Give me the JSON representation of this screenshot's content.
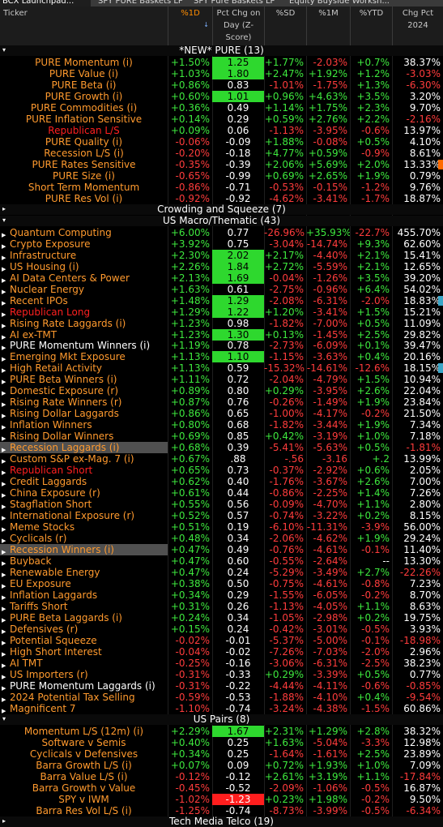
{
  "tabs": [
    "BCX Launchpad...",
    "SPY PURE Baskets LP",
    "SPY Pure Baskets LP",
    "Equity Buyside Worksh..."
  ],
  "columns": [
    {
      "label": "Ticker"
    },
    {
      "label": "%1D",
      "sort_icon": "↓"
    },
    {
      "label": "Pct Chg on Day (Z-Score)"
    },
    {
      "label": "%SD"
    },
    {
      "label": "%1M"
    },
    {
      "label": "%YTD"
    },
    {
      "label": "Chg Pct 2024"
    }
  ],
  "colors": {
    "positive": "#3ee83e",
    "negative": "#ff3c3c",
    "zscore_bar": "#2ed82e",
    "zscore_neg_bar": "#ff1e1e",
    "orange_text": "#ff9a2e",
    "red_text": "#ff2020",
    "edge_orange": "#ff6a00",
    "edge_teal": "#3aa6c8"
  },
  "groups": [
    {
      "title": "*NEW* PURE (13)",
      "align": "c",
      "rows": [
        {
          "name": "PURE Momentum (i)",
          "color": "orange",
          "d1": "+1.50%",
          "z": "1.25",
          "zbar": "green",
          "sd": "+1.77%",
          "m1": "-2.03%",
          "ytd": "+0.7%",
          "y24": "38.37%"
        },
        {
          "name": "PURE Value (i)",
          "color": "orange",
          "d1": "+1.03%",
          "z": "1.80",
          "zbar": "green",
          "sd": "+2.47%",
          "m1": "+1.92%",
          "ytd": "+1.2%",
          "y24": "-3.03%"
        },
        {
          "name": "PURE Beta (i)",
          "color": "orange",
          "d1": "+0.86%",
          "z": "0.83",
          "sd": "-1.01%",
          "m1": "-1.75%",
          "ytd": "+1.3%",
          "y24": "-6.30%"
        },
        {
          "name": "PURE Growth (i)",
          "color": "orange",
          "d1": "+0.60%",
          "z": "1.01",
          "zbar": "green",
          "sd": "+0.96%",
          "m1": "+4.63%",
          "ytd": "+3.5%",
          "y24": "3.20%"
        },
        {
          "name": "PURE Commodities (i)",
          "color": "orange",
          "d1": "+0.36%",
          "z": "0.49",
          "sd": "+1.14%",
          "m1": "+1.75%",
          "ytd": "+2.3%",
          "y24": "9.70%"
        },
        {
          "name": "PURE Inflation Sensitive",
          "color": "orange",
          "d1": "+0.14%",
          "z": "0.29",
          "sd": "+0.59%",
          "m1": "+2.76%",
          "ytd": "+2.2%",
          "y24": "-2.16%"
        },
        {
          "name": "Republican L/S",
          "color": "red",
          "d1": "+0.09%",
          "z": "0.06",
          "sd": "-1.13%",
          "m1": "-3.95%",
          "ytd": "-0.6%",
          "y24": "13.97%"
        },
        {
          "name": "PURE Quality (i)",
          "color": "orange",
          "d1": "-0.06%",
          "z": "-0.09",
          "sd": "+1.88%",
          "m1": "-0.08%",
          "ytd": "+0.5%",
          "y24": "4.10%"
        },
        {
          "name": "Recession L/S (i)",
          "color": "orange",
          "d1": "-0.20%",
          "z": "-0.18",
          "sd": "+4.77%",
          "m1": "+0.59%",
          "ytd": "-0.9%",
          "y24": "8.61%"
        },
        {
          "name": "PURE Rates Sensitive",
          "color": "orange",
          "d1": "-0.35%",
          "z": "-0.39",
          "sd": "+2.06%",
          "m1": "+5.69%",
          "ytd": "+2.0%",
          "y24": "13.33%",
          "edge": "orange"
        },
        {
          "name": "PURE Size (i)",
          "color": "orange",
          "d1": "-0.65%",
          "z": "-0.99",
          "sd": "+0.69%",
          "m1": "+2.65%",
          "ytd": "+1.9%",
          "y24": "0.79%"
        },
        {
          "name": "Short Term Momentum",
          "color": "orange",
          "d1": "-0.86%",
          "z": "-0.71",
          "sd": "-0.53%",
          "m1": "-0.15%",
          "ytd": "-1.2%",
          "y24": "9.76%"
        },
        {
          "name": "PURE Res Vol (i)",
          "color": "orange",
          "d1": "-0.92%",
          "z": "-0.92",
          "sd": "-4.62%",
          "m1": "-3.41%",
          "ytd": "-1.7%",
          "y24": "18.87%"
        }
      ]
    },
    {
      "title": "Crowding and Squeeze (7)",
      "collapsed": true,
      "rows": []
    },
    {
      "title": "US Macro/Thematic (43)",
      "align": "l",
      "rows": [
        {
          "name": "Quantum Computing",
          "color": "orange",
          "d1": "+6.00%",
          "z": "0.77",
          "sd": "-26.96%",
          "m1": "+35.93%",
          "ytd": "-22.7%",
          "y24": "455.70%"
        },
        {
          "name": "Crypto Exposure",
          "color": "orange",
          "d1": "+3.92%",
          "z": "0.75",
          "sd": "-3.04%",
          "m1": "-14.74%",
          "ytd": "+9.3%",
          "y24": "62.60%"
        },
        {
          "name": "Infrastructure",
          "color": "orange",
          "d1": "+2.30%",
          "z": "2.02",
          "zbar": "green",
          "sd": "+2.17%",
          "m1": "-4.40%",
          "ytd": "+2.1%",
          "y24": "15.41%"
        },
        {
          "name": "US Housing (i)",
          "color": "orange",
          "d1": "+2.26%",
          "z": "1.84",
          "zbar": "green",
          "sd": "+2.72%",
          "m1": "-5.59%",
          "ytd": "+2.1%",
          "y24": "12.65%"
        },
        {
          "name": "AI Data Centers & Power",
          "color": "orange",
          "d1": "+2.13%",
          "z": "1.69",
          "zbar": "green",
          "sd": "-0.04%",
          "m1": "-1.26%",
          "ytd": "+3.5%",
          "y24": "39.20%"
        },
        {
          "name": "Nuclear Energy",
          "color": "orange",
          "d1": "+1.63%",
          "z": "0.61",
          "sd": "-2.75%",
          "m1": "-0.96%",
          "ytd": "+6.4%",
          "y24": "54.02%"
        },
        {
          "name": "Recent IPOs",
          "color": "orange",
          "d1": "+1.48%",
          "z": "1.29",
          "zbar": "green",
          "sd": "-2.08%",
          "m1": "-6.31%",
          "ytd": "-2.0%",
          "y24": "18.83%",
          "edge": "teal"
        },
        {
          "name": "Republican Long",
          "color": "red",
          "d1": "+1.29%",
          "z": "1.22",
          "zbar": "green",
          "sd": "+1.20%",
          "m1": "-3.41%",
          "ytd": "+1.5%",
          "y24": "15.21%"
        },
        {
          "name": "Rising Rate Laggards (i)",
          "color": "orange",
          "d1": "+1.23%",
          "z": "0.98",
          "sd": "-1.82%",
          "m1": "-7.00%",
          "ytd": "+0.5%",
          "y24": "11.09%"
        },
        {
          "name": "AI ex-TMT",
          "color": "orange",
          "d1": "+1.23%",
          "z": "1.30",
          "zbar": "green",
          "sd": "+0.13%",
          "m1": "-1.45%",
          "ytd": "+2.5%",
          "y24": "29.82%"
        },
        {
          "name": "PURE Momentum Winners (i)",
          "color": "white",
          "d1": "+1.19%",
          "z": "0.78",
          "sd": "-2.73%",
          "m1": "-6.09%",
          "ytd": "+0.1%",
          "y24": "39.47%"
        },
        {
          "name": "Emerging Mkt Exposure",
          "color": "orange",
          "d1": "+1.13%",
          "z": "1.10",
          "zbar": "green",
          "sd": "-1.15%",
          "m1": "-3.63%",
          "ytd": "+0.4%",
          "y24": "20.16%"
        },
        {
          "name": "High Retail Activity",
          "color": "orange",
          "d1": "+1.13%",
          "z": "0.59",
          "sd": "-15.32%",
          "m1": "-14.61%",
          "ytd": "-12.6%",
          "y24": "18.15%",
          "edge": "teal"
        },
        {
          "name": "PURE Beta Winners (i)",
          "color": "orange",
          "d1": "+1.11%",
          "z": "0.72",
          "sd": "-2.04%",
          "m1": "-4.79%",
          "ytd": "+1.5%",
          "y24": "10.94%"
        },
        {
          "name": "Domestic Exposure (r)",
          "color": "orange",
          "d1": "+0.89%",
          "z": "0.80",
          "sd": "+0.29%",
          "m1": "-3.95%",
          "ytd": "+2.6%",
          "y24": "22.04%"
        },
        {
          "name": "Rising Rate Winners (r)",
          "color": "orange",
          "d1": "+0.87%",
          "z": "0.76",
          "sd": "-0.26%",
          "m1": "-1.49%",
          "ytd": "+1.9%",
          "y24": "23.84%"
        },
        {
          "name": "Rising Dollar Laggards",
          "color": "orange",
          "d1": "+0.86%",
          "z": "0.65",
          "sd": "-1.00%",
          "m1": "-4.17%",
          "ytd": "-0.2%",
          "y24": "21.50%"
        },
        {
          "name": "Inflation Winners",
          "color": "orange",
          "d1": "+0.80%",
          "z": "0.68",
          "sd": "-1.82%",
          "m1": "-3.44%",
          "ytd": "+1.9%",
          "y24": "7.34%"
        },
        {
          "name": "Rising Dollar Winners",
          "color": "orange",
          "d1": "+0.69%",
          "z": "0.85",
          "sd": "+0.42%",
          "m1": "-3.19%",
          "ytd": "+1.0%",
          "y24": "7.18%"
        },
        {
          "name": "Recession Laggards (i)",
          "color": "orange",
          "d1": "+0.68%",
          "z": "0.39",
          "sd": "-5.41%",
          "m1": "-5.63%",
          "ytd": "+0.5%",
          "y24": "-1.81%",
          "selected": true
        },
        {
          "name": "Custom S&P ex-Mag. 7 (i)",
          "color": "orange",
          "d1": "+0.67%",
          "z": ".88",
          "sd": "-.56",
          "m1": "-3.16",
          "ytd": "+.2",
          "y24": "13.99%"
        },
        {
          "name": "Republican Short",
          "color": "red",
          "d1": "+0.65%",
          "z": "0.73",
          "sd": "-0.37%",
          "m1": "-2.92%",
          "ytd": "+0.6%",
          "y24": "2.05%"
        },
        {
          "name": "Credit Laggards",
          "color": "orange",
          "d1": "+0.62%",
          "z": "0.40",
          "sd": "-1.76%",
          "m1": "-3.67%",
          "ytd": "+2.6%",
          "y24": "7.00%"
        },
        {
          "name": "China Exposure (r)",
          "color": "orange",
          "d1": "+0.61%",
          "z": "0.44",
          "sd": "-0.86%",
          "m1": "-2.25%",
          "ytd": "+1.4%",
          "y24": "7.26%"
        },
        {
          "name": "Stagflation Short",
          "color": "orange",
          "d1": "+0.55%",
          "z": "0.56",
          "sd": "-0.09%",
          "m1": "-4.70%",
          "ytd": "+1.1%",
          "y24": "2.80%"
        },
        {
          "name": "International Exposure (r)",
          "color": "orange",
          "d1": "+0.52%",
          "z": "0.57",
          "sd": "-0.74%",
          "m1": "-3.22%",
          "ytd": "+0.2%",
          "y24": "8.15%"
        },
        {
          "name": "Meme Stocks",
          "color": "orange",
          "d1": "+0.51%",
          "z": "0.19",
          "sd": "-6.10%",
          "m1": "-11.31%",
          "ytd": "-3.9%",
          "y24": "56.00%"
        },
        {
          "name": "Cyclicals (r)",
          "color": "orange",
          "d1": "+0.48%",
          "z": "0.34",
          "sd": "-2.06%",
          "m1": "-4.62%",
          "ytd": "+1.9%",
          "y24": "29.24%"
        },
        {
          "name": "Recession Winners (i)",
          "color": "orange",
          "d1": "+0.47%",
          "z": "0.49",
          "sd": "-0.76%",
          "m1": "-4.61%",
          "ytd": "-0.1%",
          "y24": "11.40%",
          "selected": true
        },
        {
          "name": "Buyback",
          "color": "orange",
          "d1": "+0.47%",
          "z": "0.60",
          "sd": "-0.55%",
          "m1": "-2.64%",
          "ytd": "--",
          "y24": "13.30%"
        },
        {
          "name": "Renewable Energy",
          "color": "orange",
          "d1": "+0.47%",
          "z": "0.24",
          "sd": "-5.29%",
          "m1": "-3.49%",
          "ytd": "+2.7%",
          "y24": "-22.26%"
        },
        {
          "name": "EU Exposure",
          "color": "orange",
          "d1": "+0.38%",
          "z": "0.50",
          "sd": "-0.75%",
          "m1": "-4.61%",
          "ytd": "-0.8%",
          "y24": "7.23%"
        },
        {
          "name": "Inflation Laggards",
          "color": "orange",
          "d1": "+0.34%",
          "z": "0.29",
          "sd": "-1.55%",
          "m1": "-6.05%",
          "ytd": "-0.2%",
          "y24": "8.70%"
        },
        {
          "name": "Tariffs Short",
          "color": "orange",
          "d1": "+0.31%",
          "z": "0.26",
          "sd": "-1.13%",
          "m1": "-4.05%",
          "ytd": "+1.1%",
          "y24": "8.63%"
        },
        {
          "name": "PURE Beta Laggards (i)",
          "color": "orange",
          "d1": "+0.24%",
          "z": "0.34",
          "sd": "-1.05%",
          "m1": "-2.98%",
          "ytd": "+0.2%",
          "y24": "19.75%"
        },
        {
          "name": "Defensives (r)",
          "color": "orange",
          "d1": "+0.15%",
          "z": "0.24",
          "sd": "-0.42%",
          "m1": "-3.01%",
          "ytd": "-0.5%",
          "y24": "3.93%"
        },
        {
          "name": "Potential Squeeze",
          "color": "orange",
          "d1": "-0.02%",
          "z": "-0.01",
          "sd": "-5.37%",
          "m1": "-5.00%",
          "ytd": "-0.1%",
          "y24": "-18.98%"
        },
        {
          "name": "High Short Interest",
          "color": "orange",
          "d1": "-0.04%",
          "z": "-0.02",
          "sd": "-7.26%",
          "m1": "-7.03%",
          "ytd": "-2.0%",
          "y24": "2.96%"
        },
        {
          "name": "AI TMT",
          "color": "orange",
          "d1": "-0.25%",
          "z": "-0.16",
          "sd": "-3.06%",
          "m1": "-6.31%",
          "ytd": "-2.5%",
          "y24": "38.23%"
        },
        {
          "name": "US Importers (r)",
          "color": "orange",
          "d1": "-0.31%",
          "z": "-0.33",
          "sd": "+0.29%",
          "m1": "-3.39%",
          "ytd": "+0.5%",
          "y24": "0.77%"
        },
        {
          "name": "PURE Momentum Laggards (i)",
          "color": "white",
          "d1": "-0.31%",
          "z": "-0.22",
          "sd": "-4.44%",
          "m1": "-4.11%",
          "ytd": "-0.6%",
          "y24": "-0.85%"
        },
        {
          "name": "2024 Potential Tax Selling",
          "color": "orange",
          "d1": "-0.59%",
          "z": "-0.53",
          "sd": "-1.88%",
          "m1": "-4.10%",
          "ytd": "+0.4%",
          "y24": "-9.54%"
        },
        {
          "name": "Magnificent 7",
          "color": "orange",
          "d1": "-1.10%",
          "z": "-0.74",
          "sd": "-3.24%",
          "m1": "-4.38%",
          "ytd": "-1.5%",
          "y24": "60.86%"
        }
      ]
    },
    {
      "title": "US Pairs (8)",
      "align": "c",
      "rows": [
        {
          "name": "Momentum L/S (12m) (i)",
          "color": "orange",
          "d1": "+2.29%",
          "z": "1.67",
          "zbar": "green",
          "sd": "+2.31%",
          "m1": "+1.29%",
          "ytd": "+2.8%",
          "y24": "38.32%"
        },
        {
          "name": "Software v Semis",
          "color": "orange",
          "d1": "+0.40%",
          "z": "0.25",
          "sd": "+1.63%",
          "m1": "-5.04%",
          "ytd": "-3.3%",
          "y24": "12.98%"
        },
        {
          "name": "Cyclicals v Defensives",
          "color": "orange",
          "d1": "+0.34%",
          "z": "0.25",
          "sd": "-1.64%",
          "m1": "-1.61%",
          "ytd": "+2.5%",
          "y24": "23.89%"
        },
        {
          "name": "Barra Growth L/S (i)",
          "color": "orange",
          "d1": "+0.07%",
          "z": "0.09",
          "sd": "+0.72%",
          "m1": "+1.93%",
          "ytd": "+1.0%",
          "y24": "7.09%"
        },
        {
          "name": "Barra Value L/S (i)",
          "color": "orange",
          "d1": "-0.12%",
          "z": "-0.12",
          "sd": "+2.61%",
          "m1": "+3.19%",
          "ytd": "+1.1%",
          "y24": "-17.84%"
        },
        {
          "name": "Barra Growth v Value",
          "color": "orange",
          "d1": "-0.45%",
          "z": "-0.52",
          "sd": "-2.09%",
          "m1": "-1.06%",
          "ytd": "-0.5%",
          "y24": "16.87%"
        },
        {
          "name": "SPY v IWM",
          "color": "orange",
          "d1": "-1.02%",
          "z": "-1.23",
          "zbar": "red",
          "sd": "+0.23%",
          "m1": "+1.98%",
          "ytd": "-0.2%",
          "y24": "9.50%"
        },
        {
          "name": "Barra Res Vol L/S (i)",
          "color": "orange",
          "d1": "-1.25%",
          "z": "-0.74",
          "sd": "-8.73%",
          "m1": "-3.99%",
          "ytd": "-0.5%",
          "y24": "-6.34%"
        }
      ]
    },
    {
      "title": "Tech Media Telco (19)",
      "collapsed": true,
      "rows": []
    }
  ]
}
